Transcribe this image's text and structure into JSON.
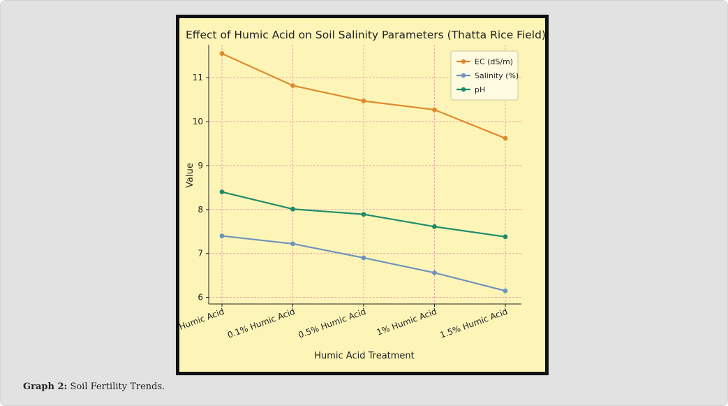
{
  "figure": {
    "caption_label": "Graph 2:",
    "caption_text": "Soil Fertility Trends."
  },
  "colors": {
    "outer_bg": "#e2e2e2",
    "frame": "#111111",
    "plot_bg": "#fdf5b8",
    "grid": "#e8a6a6",
    "ec": "#e08a2e",
    "salinity": "#6e93bd",
    "ph": "#1f8a6a"
  },
  "chart_data": {
    "type": "line",
    "title": "Effect of Humic Acid on Soil Salinity Parameters (Thatta Rice Field)",
    "xlabel": "Humic Acid Treatment",
    "ylabel": "Value",
    "categories": [
      "Before Humic Acid",
      "0.1% Humic Acid",
      "0.5% Humic Acid",
      "1% Humic Acid",
      "1.5% Humic Acid"
    ],
    "ylim": [
      5.85,
      11.75
    ],
    "yticks": [
      6,
      7,
      8,
      9,
      10,
      11
    ],
    "grid": true,
    "legend_position": "top-right",
    "series": [
      {
        "name": "EC (dS/m)",
        "color_key": "ec",
        "values": [
          11.55,
          10.82,
          10.47,
          10.27,
          9.62
        ]
      },
      {
        "name": "Salinity (%)",
        "color_key": "salinity",
        "values": [
          7.4,
          7.22,
          6.9,
          6.56,
          6.15
        ]
      },
      {
        "name": "pH",
        "color_key": "ph",
        "values": [
          8.4,
          8.01,
          7.89,
          7.61,
          7.38
        ]
      }
    ]
  }
}
